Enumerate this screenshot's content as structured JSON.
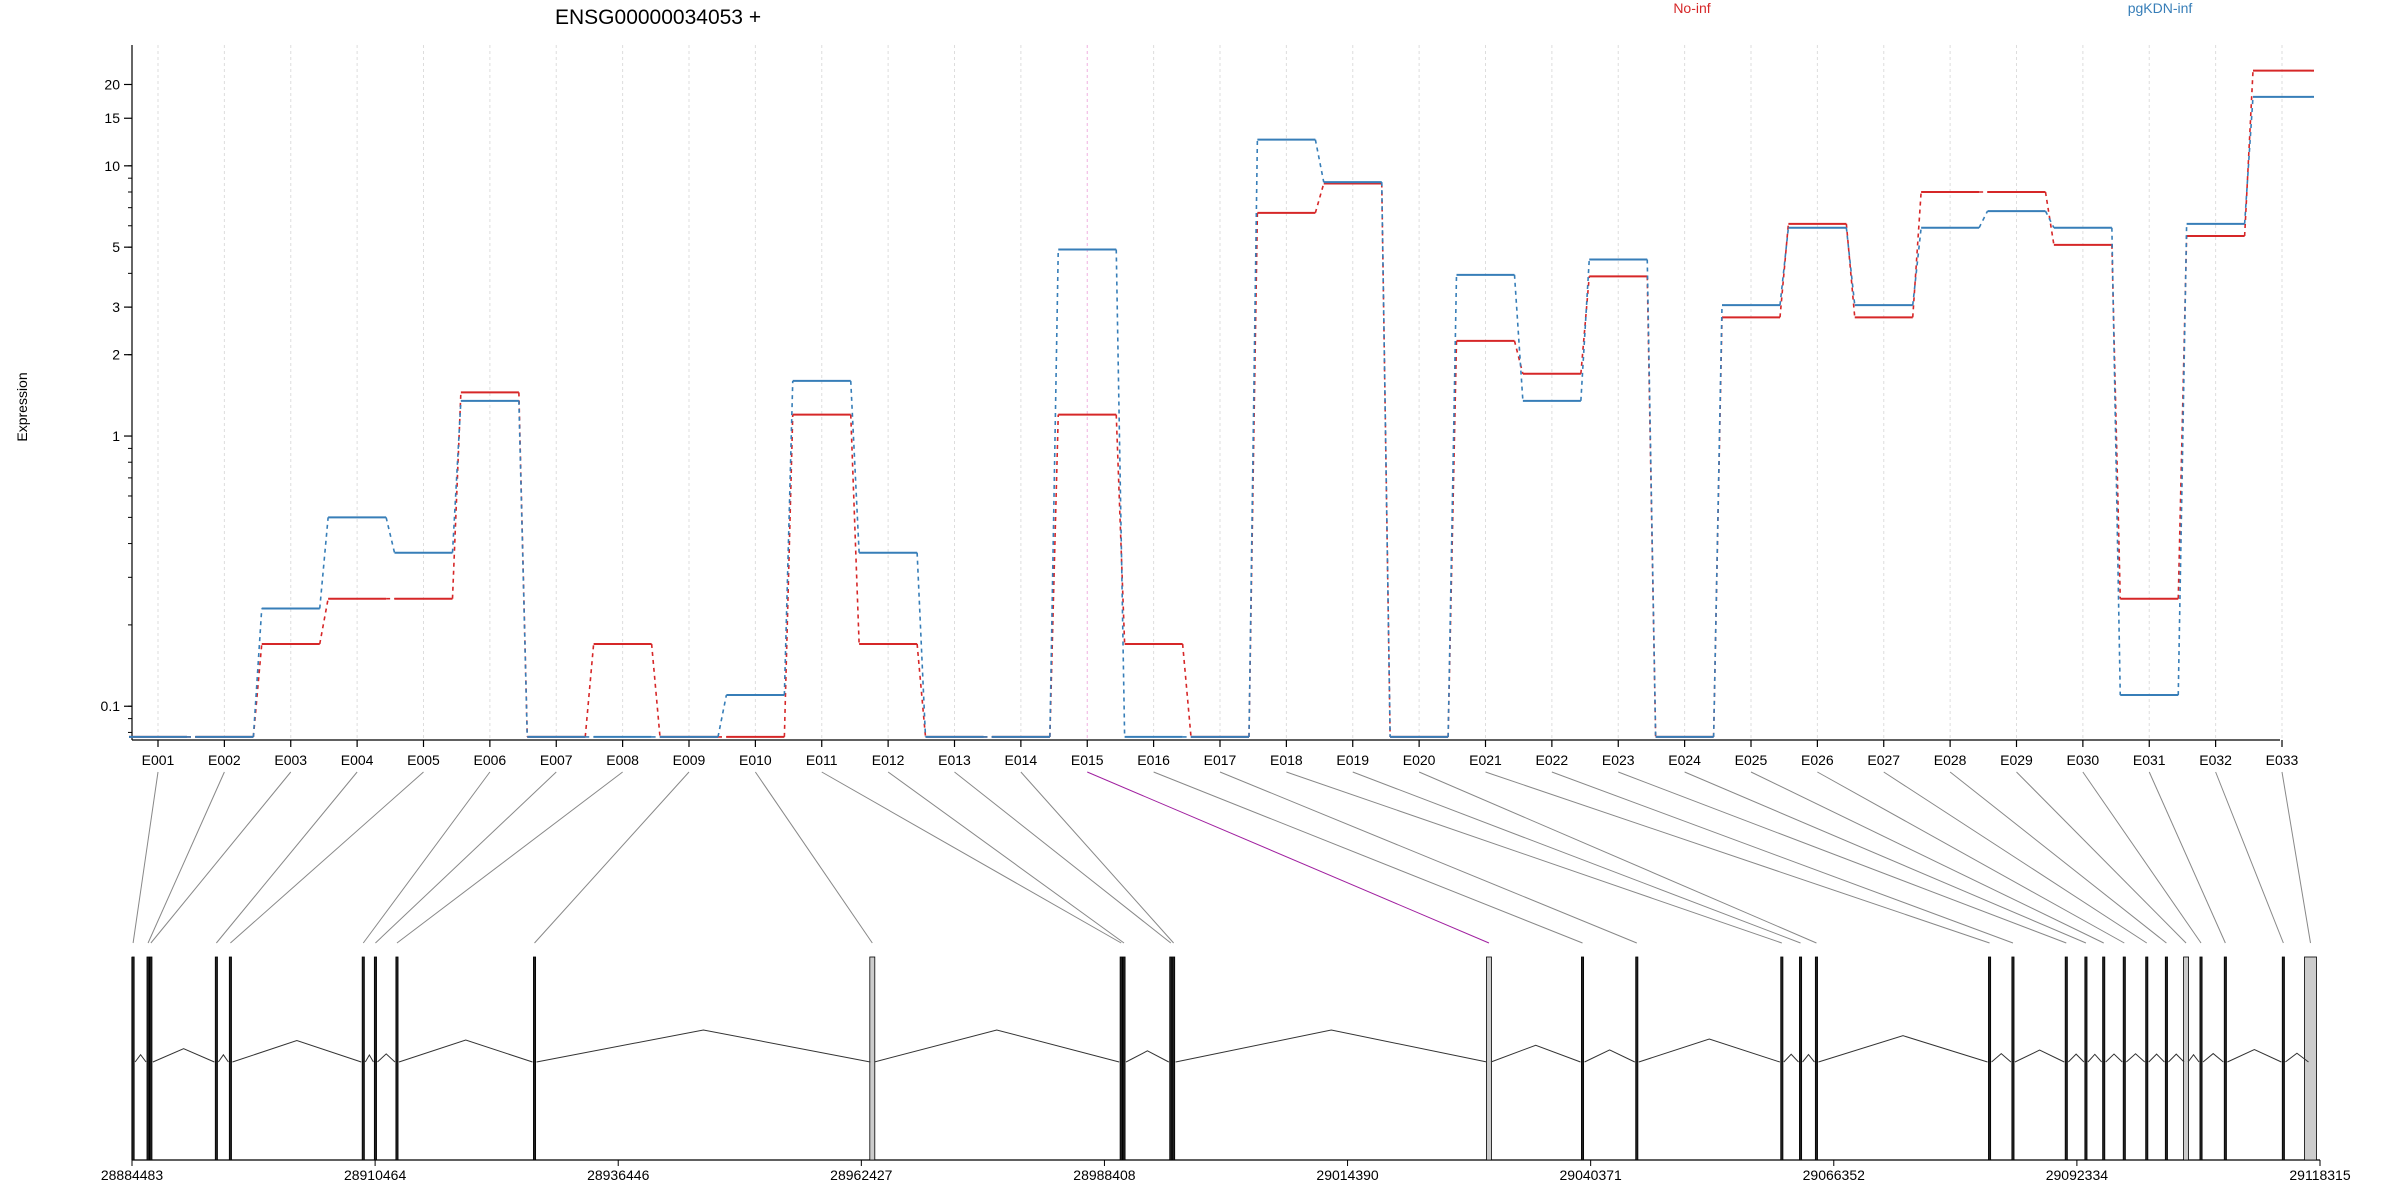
{
  "chart_data": {
    "type": "line",
    "title": "ENSG00000034053 +",
    "ylabel": "Expression",
    "xlabel": "",
    "yscale": "log",
    "ylim": [
      0.075,
      28
    ],
    "y_ticks": [
      0.1,
      1,
      2,
      3,
      5,
      10,
      15,
      20
    ],
    "y_tick_labels": [
      "0.1",
      "1",
      "2",
      "3",
      "5",
      "10",
      "15",
      "20"
    ],
    "legend_placement": "top",
    "grid": "vertical dotted at each exon",
    "categories": [
      "E001",
      "E002",
      "E003",
      "E004",
      "E005",
      "E006",
      "E007",
      "E008",
      "E009",
      "E010",
      "E011",
      "E012",
      "E013",
      "E014",
      "E015",
      "E016",
      "E017",
      "E018",
      "E019",
      "E020",
      "E021",
      "E022",
      "E023",
      "E024",
      "E025",
      "E026",
      "E027",
      "E028",
      "E029",
      "E030",
      "E031",
      "E032",
      "E033"
    ],
    "highlighted_exon": "E015",
    "series": [
      {
        "name": "No-inf",
        "color": "#d62728",
        "values": [
          0.077,
          0.077,
          0.17,
          0.25,
          0.25,
          1.45,
          0.077,
          0.17,
          0.077,
          0.077,
          1.2,
          0.17,
          0.077,
          0.077,
          1.2,
          0.17,
          0.077,
          6.7,
          8.6,
          0.077,
          2.25,
          1.7,
          3.9,
          0.077,
          2.75,
          6.1,
          2.75,
          8.0,
          8.0,
          5.1,
          0.25,
          5.5,
          22.5
        ]
      },
      {
        "name": "pgKDN-inf",
        "color": "#377eb8",
        "values": [
          0.077,
          0.077,
          0.23,
          0.5,
          0.37,
          1.35,
          0.077,
          0.077,
          0.077,
          0.11,
          1.6,
          0.37,
          0.077,
          0.077,
          4.9,
          0.077,
          0.077,
          12.5,
          8.7,
          0.077,
          3.95,
          1.35,
          4.5,
          0.077,
          3.05,
          5.9,
          3.05,
          5.9,
          6.8,
          5.9,
          0.11,
          6.1,
          18.0
        ]
      }
    ],
    "gene_model": {
      "coord_ticks": [
        "28884483",
        "28910464",
        "28936446",
        "28962427",
        "28988408",
        "29014390",
        "29040371",
        "29066352",
        "29092334",
        "29118315"
      ],
      "coord_range": [
        28884483,
        29118315
      ],
      "exon_positions": [
        28884600,
        28886200,
        28886500,
        28893500,
        28895000,
        28909200,
        28910500,
        28912800,
        28927500,
        28963600,
        28990200,
        28990500,
        28995500,
        28995800,
        29029500,
        29039500,
        29045300,
        29060800,
        29062800,
        29064500,
        29083000,
        29085500,
        29091200,
        29093300,
        29095200,
        29097400,
        29099800,
        29101900,
        29104000,
        29105600,
        29108200,
        29114400,
        29117300
      ]
    }
  }
}
